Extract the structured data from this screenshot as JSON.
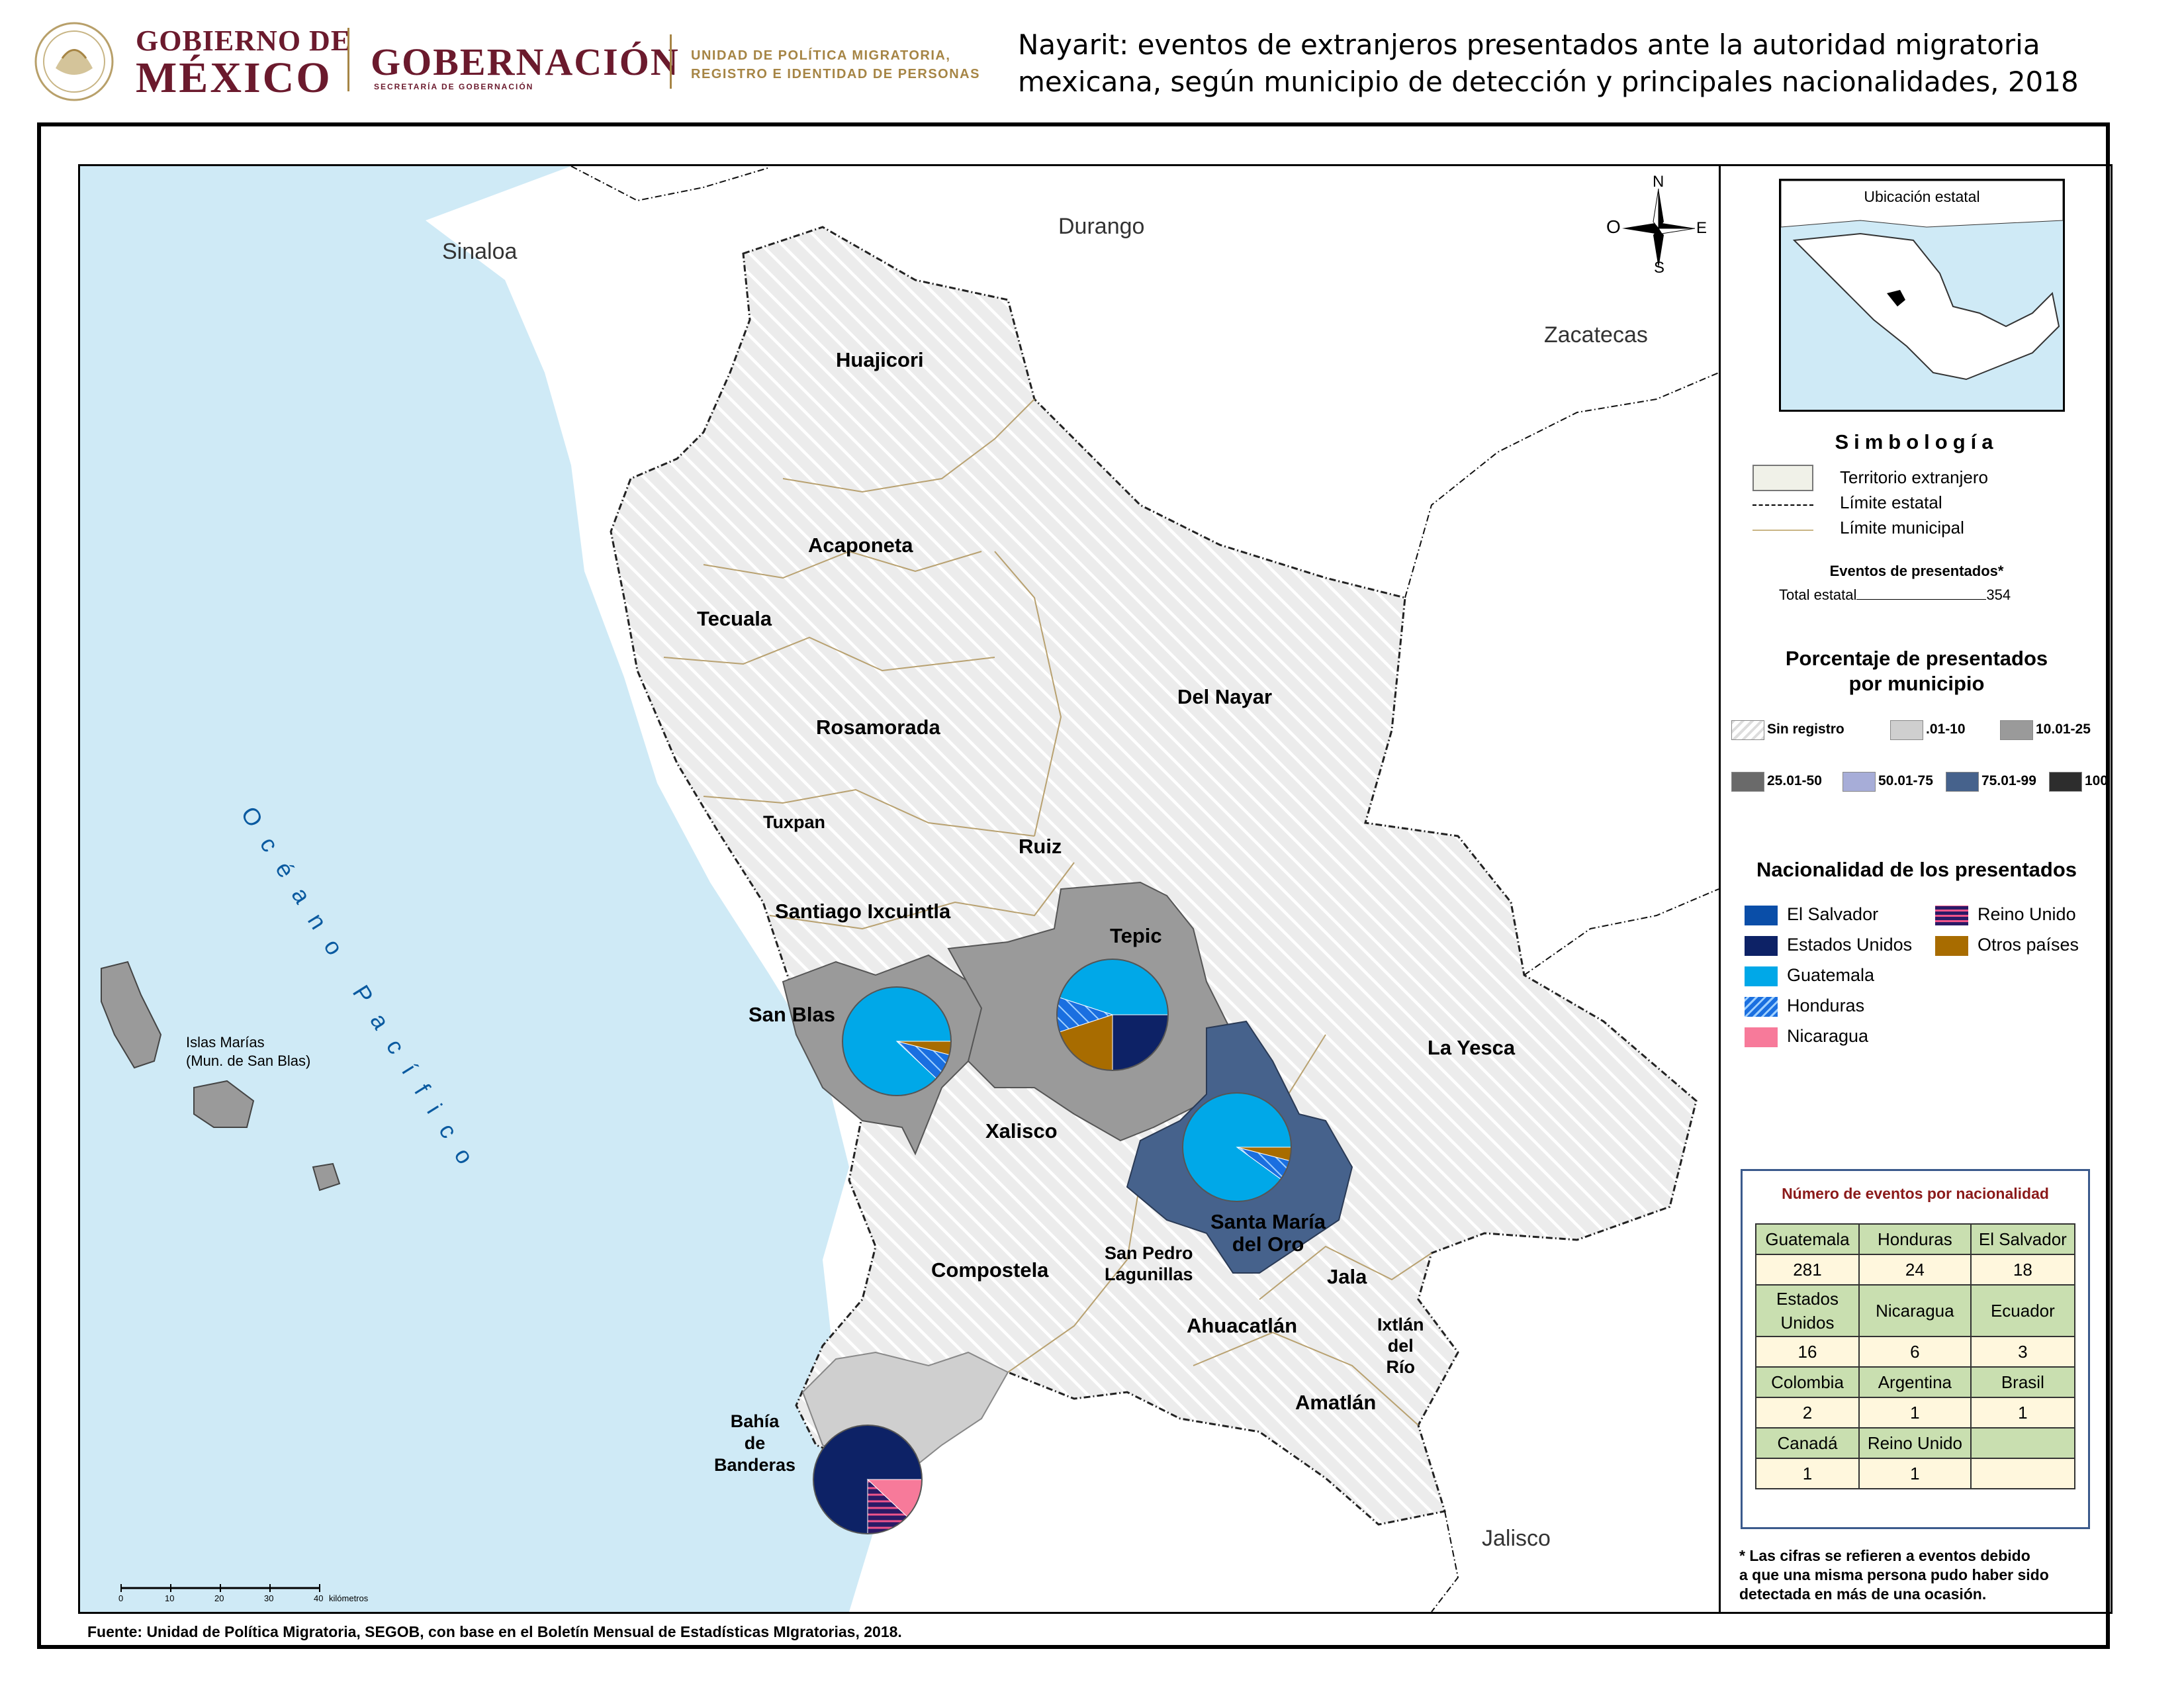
{
  "header": {
    "logo_line1": "GOBIERNO DE",
    "logo_line2": "MÉXICO",
    "gobernacion": "GOBERNACIÓN",
    "gobernacion_sub": "SECRETARÍA DE GOBERNACIÓN",
    "unidad_line1": "UNIDAD DE POLÍTICA MIGRATORIA,",
    "unidad_line2": "REGISTRO E IDENTIDAD DE PERSONAS",
    "title_line1": "Nayarit: eventos de extranjeros presentados ante la autoridad migratoria",
    "title_line2": "mexicana, según municipio de detección y principales nacionalidades, 2018",
    "brand_color": "#6b1a2d",
    "gold_color": "#a68545"
  },
  "map": {
    "regions": {
      "sinaloa": "Sinaloa",
      "durango": "Durango",
      "zacatecas": "Zacatecas",
      "jalisco": "Jalisco",
      "ocean": "Océano Pacífico",
      "islas": "Islas Marías",
      "islas_sub": "(Mun. de San Blas)"
    },
    "municipalities": {
      "huajicori": "Huajicori",
      "acaponeta": "Acaponeta",
      "tecuala": "Tecuala",
      "rosamorada": "Rosamorada",
      "delnayar": "Del Nayar",
      "tuxpan": "Tuxpan",
      "ruiz": "Ruiz",
      "santiago": "Santiago Ixcuintla",
      "tepic": "Tepic",
      "sanblas": "San Blas",
      "layesca": "La Yesca",
      "xalisco": "Xalisco",
      "santamaria1": "Santa María",
      "santamaria2": "del Oro",
      "compostela": "Compostela",
      "sanpedro1": "San Pedro",
      "sanpedro2": "Lagunillas",
      "jala": "Jala",
      "ahuacatlan": "Ahuacatlán",
      "ixtlan1": "Ixtlán",
      "ixtlan2": "del",
      "ixtlan3": "Río",
      "amatlan": "Amatlán",
      "bahia1": "Bahía",
      "bahia2": "de",
      "bahia3": "Banderas"
    },
    "compass": {
      "n": "N",
      "s": "S",
      "e": "E",
      "w": "O"
    },
    "scale": {
      "ticks": [
        "0",
        "10",
        "20",
        "30",
        "40"
      ],
      "unit": "kilómetros"
    },
    "pies": [
      {
        "municipio": "San Blas",
        "slices": [
          {
            "nat": "Guatemala",
            "value": 88
          },
          {
            "nat": "Honduras",
            "value": 8
          },
          {
            "nat": "Otros países",
            "value": 4
          }
        ]
      },
      {
        "municipio": "Tepic",
        "slices": [
          {
            "nat": "Guatemala",
            "value": 45
          },
          {
            "nat": "Honduras",
            "value": 10
          },
          {
            "nat": "Otros países",
            "value": 20
          },
          {
            "nat": "Estados Unidos",
            "value": 25
          }
        ]
      },
      {
        "municipio": "Santa María del Oro",
        "slices": [
          {
            "nat": "Guatemala",
            "value": 90
          },
          {
            "nat": "Honduras",
            "value": 6
          },
          {
            "nat": "Otros países",
            "value": 4
          }
        ]
      },
      {
        "municipio": "Bahía de Banderas",
        "slices": [
          {
            "nat": "Estados Unidos",
            "value": 75
          },
          {
            "nat": "Reino Unido",
            "value": 13
          },
          {
            "nat": "Nicaragua",
            "value": 12
          }
        ]
      }
    ]
  },
  "source": "Fuente: Unidad de Política Migratoria, SEGOB, con base en el Boletín Mensual de Estadísticas MIgratorias, 2018.",
  "sidebar": {
    "inset_title": "Ubicación estatal",
    "simbologia": "Simbología",
    "symbols": {
      "foreign": "Territorio extranjero",
      "state": "Límite estatal",
      "municipal": "Límite municipal"
    },
    "events_title": "Eventos de presentados*",
    "total_label": "Total estatal",
    "total_value": "354",
    "pct_title_1": "Porcentaje de presentados",
    "pct_title_2": "por municipio",
    "pct_classes": [
      {
        "label": "Sin registro",
        "color": "#ffffff"
      },
      {
        "label": ".01-10",
        "color": "#cfcfcf"
      },
      {
        "label": "10.01-25",
        "color": "#9a9a9a"
      },
      {
        "label": "25.01-50",
        "color": "#6a6a6a"
      },
      {
        "label": "50.01-75",
        "color": "#a7add8"
      },
      {
        "label": "75.01-99",
        "color": "#46628c"
      },
      {
        "label": "100",
        "color": "#2d2d2d"
      }
    ],
    "nat_title": "Nacionalidad de los presentados",
    "nationalities": [
      {
        "label": "El Salvador",
        "color": "#0a4ea8"
      },
      {
        "label": "Estados Unidos",
        "color": "#0d2266"
      },
      {
        "label": "Guatemala",
        "color": "#00a8e8"
      },
      {
        "label": "Honduras",
        "color": "#1a6fe0"
      },
      {
        "label": "Nicaragua",
        "color": "#f77a9a"
      },
      {
        "label": "Reino Unido",
        "color": "#2a1a66"
      },
      {
        "label": "Otros países",
        "color": "#a86c00"
      }
    ],
    "table_title": "Número de eventos por nacionalidad",
    "table": {
      "r1n": [
        "Guatemala",
        "Honduras",
        "El Salvador"
      ],
      "r1v": [
        "281",
        "24",
        "18"
      ],
      "r2n": [
        "Estados Unidos",
        "Nicaragua",
        "Ecuador"
      ],
      "r2v": [
        "16",
        "6",
        "3"
      ],
      "r3n": [
        "Colombia",
        "Argentina",
        "Brasil"
      ],
      "r3v": [
        "2",
        "1",
        "1"
      ],
      "r4n": [
        "Canadá",
        "Reino Unido",
        ""
      ],
      "r4v": [
        "1",
        "1",
        ""
      ]
    },
    "note_1": "* Las cifras se refieren a eventos debido",
    "note_2": "a que una misma persona pudo haber sido",
    "note_3": "detectada en más de una ocasión."
  }
}
